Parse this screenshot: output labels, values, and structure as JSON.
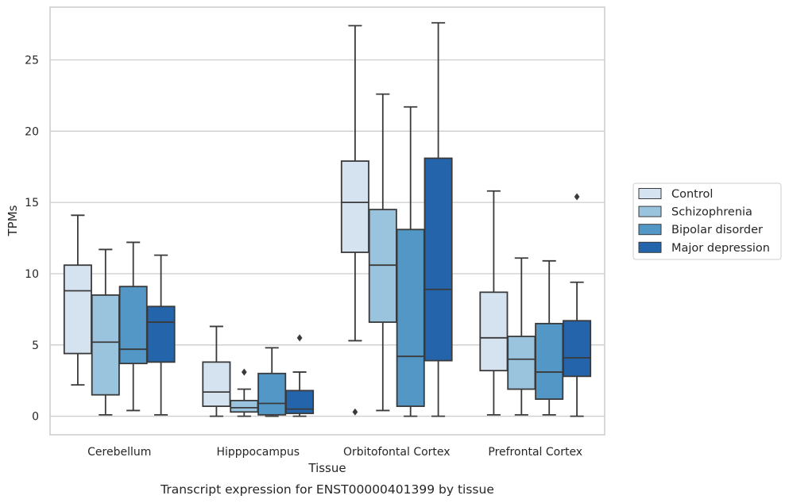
{
  "chart_data": {
    "type": "box",
    "title": "",
    "caption": "Transcript expression for ENST00000401399 by tissue",
    "xlabel": "Tissue",
    "ylabel": "TPMs",
    "ylim": [
      -1.3,
      28.7
    ],
    "yticks": [
      0,
      5,
      10,
      15,
      20,
      25
    ],
    "grid": "horizontal",
    "legend_position": "right",
    "categories": [
      "Cerebellum",
      "Hipppocampus",
      "Orbitofontal Cortex",
      "Prefrontal Cortex"
    ],
    "series": [
      {
        "name": "Control",
        "color": "#d5e3f1",
        "boxes": [
          {
            "whislo": 2.2,
            "q1": 4.4,
            "med": 8.8,
            "q3": 10.6,
            "whishi": 14.1,
            "fliers": []
          },
          {
            "whislo": 0.0,
            "q1": 0.7,
            "med": 1.7,
            "q3": 3.8,
            "whishi": 6.3,
            "fliers": []
          },
          {
            "whislo": 5.3,
            "q1": 11.5,
            "med": 15.0,
            "q3": 17.9,
            "whishi": 27.4,
            "fliers": [
              0.3
            ]
          },
          {
            "whislo": 0.1,
            "q1": 3.2,
            "med": 5.5,
            "q3": 8.7,
            "whishi": 15.8,
            "fliers": []
          }
        ]
      },
      {
        "name": "Schizophrenia",
        "color": "#9ac3de",
        "boxes": [
          {
            "whislo": 0.1,
            "q1": 1.5,
            "med": 5.2,
            "q3": 8.5,
            "whishi": 11.7,
            "fliers": []
          },
          {
            "whislo": 0.0,
            "q1": 0.3,
            "med": 0.6,
            "q3": 1.1,
            "whishi": 1.9,
            "fliers": [
              3.1
            ]
          },
          {
            "whislo": 0.4,
            "q1": 6.6,
            "med": 10.6,
            "q3": 14.5,
            "whishi": 22.6,
            "fliers": []
          },
          {
            "whislo": 0.1,
            "q1": 1.9,
            "med": 4.0,
            "q3": 5.6,
            "whishi": 11.1,
            "fliers": []
          }
        ]
      },
      {
        "name": "Bipolar disorder",
        "color": "#5297c6",
        "boxes": [
          {
            "whislo": 0.4,
            "q1": 3.7,
            "med": 4.7,
            "q3": 9.1,
            "whishi": 12.2,
            "fliers": []
          },
          {
            "whislo": 0.0,
            "q1": 0.1,
            "med": 0.9,
            "q3": 3.0,
            "whishi": 4.8,
            "fliers": []
          },
          {
            "whislo": 0.0,
            "q1": 0.7,
            "med": 4.2,
            "q3": 13.1,
            "whishi": 21.7,
            "fliers": []
          },
          {
            "whislo": 0.1,
            "q1": 1.2,
            "med": 3.1,
            "q3": 6.5,
            "whishi": 10.9,
            "fliers": []
          }
        ]
      },
      {
        "name": "Major depression",
        "color": "#2464ab",
        "boxes": [
          {
            "whislo": 0.1,
            "q1": 3.8,
            "med": 6.6,
            "q3": 7.7,
            "whishi": 11.3,
            "fliers": []
          },
          {
            "whislo": 0.0,
            "q1": 0.2,
            "med": 0.5,
            "q3": 1.8,
            "whishi": 3.1,
            "fliers": [
              5.5
            ]
          },
          {
            "whislo": 0.0,
            "q1": 3.9,
            "med": 8.9,
            "q3": 18.1,
            "whishi": 27.6,
            "fliers": []
          },
          {
            "whislo": 0.0,
            "q1": 2.8,
            "med": 4.1,
            "q3": 6.7,
            "whishi": 9.4,
            "fliers": [
              15.4
            ]
          }
        ]
      }
    ]
  }
}
